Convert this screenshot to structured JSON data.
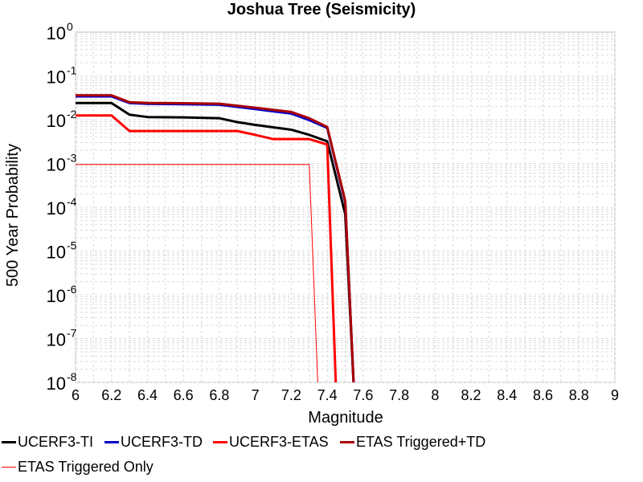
{
  "chart_data": {
    "type": "line",
    "title": "Joshua Tree (Seismicity)",
    "xlabel": "Magnitude",
    "ylabel": "500 Year Probability",
    "xlim": [
      6,
      9
    ],
    "ylim": [
      1e-08,
      1
    ],
    "y_scale": "log",
    "grid": true,
    "legend_position": "bottom",
    "x_ticks": [
      "6",
      "6.2",
      "6.4",
      "6.6",
      "6.8",
      "7",
      "7.2",
      "7.4",
      "7.6",
      "7.8",
      "8",
      "8.2",
      "8.4",
      "8.6",
      "8.8",
      "9"
    ],
    "y_ticks": [
      {
        "base": "10",
        "exp": "0",
        "value": 1
      },
      {
        "base": "10",
        "exp": "-1",
        "value": 0.1
      },
      {
        "base": "10",
        "exp": "-2",
        "value": 0.01
      },
      {
        "base": "10",
        "exp": "-3",
        "value": 0.001
      },
      {
        "base": "10",
        "exp": "-4",
        "value": 0.0001
      },
      {
        "base": "10",
        "exp": "-5",
        "value": 1e-05
      },
      {
        "base": "10",
        "exp": "-6",
        "value": 1e-06
      },
      {
        "base": "10",
        "exp": "-7",
        "value": 1e-07
      },
      {
        "base": "10",
        "exp": "-8",
        "value": 1e-08
      }
    ],
    "series": [
      {
        "name": "UCERF3-TI",
        "color": "#000000",
        "width": 3,
        "points": [
          [
            6.0,
            0.024
          ],
          [
            6.2,
            0.024
          ],
          [
            6.3,
            0.013
          ],
          [
            6.4,
            0.0115
          ],
          [
            6.6,
            0.0113
          ],
          [
            6.8,
            0.0108
          ],
          [
            6.9,
            0.0088
          ],
          [
            7.0,
            0.0076
          ],
          [
            7.1,
            0.0067
          ],
          [
            7.2,
            0.0059
          ],
          [
            7.3,
            0.0045
          ],
          [
            7.4,
            0.0032
          ],
          [
            7.5,
            7e-05
          ],
          [
            7.55,
            5e-09
          ]
        ]
      },
      {
        "name": "UCERF3-TD",
        "color": "#0000cc",
        "width": 3,
        "points": [
          [
            6.0,
            0.034
          ],
          [
            6.2,
            0.034
          ],
          [
            6.3,
            0.024
          ],
          [
            6.4,
            0.023
          ],
          [
            6.6,
            0.0225
          ],
          [
            6.8,
            0.022
          ],
          [
            7.0,
            0.0175
          ],
          [
            7.1,
            0.0155
          ],
          [
            7.2,
            0.0138
          ],
          [
            7.3,
            0.0098
          ],
          [
            7.4,
            0.0065
          ],
          [
            7.5,
            0.00013
          ],
          [
            7.55,
            5e-09
          ]
        ]
      },
      {
        "name": "UCERF3-ETAS",
        "color": "#ff0000",
        "width": 3,
        "points": [
          [
            6.0,
            0.0125
          ],
          [
            6.2,
            0.0125
          ],
          [
            6.3,
            0.0055
          ],
          [
            6.4,
            0.0055
          ],
          [
            6.6,
            0.0055
          ],
          [
            6.8,
            0.0055
          ],
          [
            6.9,
            0.0055
          ],
          [
            7.0,
            0.0045
          ],
          [
            7.1,
            0.0036
          ],
          [
            7.2,
            0.0036
          ],
          [
            7.3,
            0.0036
          ],
          [
            7.4,
            0.0027
          ],
          [
            7.45,
            5e-09
          ]
        ]
      },
      {
        "name": "ETAS Triggered+TD",
        "color": "#aa0000",
        "width": 3,
        "points": [
          [
            6.0,
            0.036
          ],
          [
            6.2,
            0.036
          ],
          [
            6.3,
            0.025
          ],
          [
            6.4,
            0.0242
          ],
          [
            6.6,
            0.0238
          ],
          [
            6.8,
            0.0232
          ],
          [
            7.0,
            0.0188
          ],
          [
            7.1,
            0.0168
          ],
          [
            7.2,
            0.015
          ],
          [
            7.3,
            0.0108
          ],
          [
            7.4,
            0.0068
          ],
          [
            7.5,
            0.00014
          ],
          [
            7.55,
            5e-09
          ]
        ]
      },
      {
        "name": "ETAS Triggered Only",
        "color": "#ff0000",
        "width": 1,
        "points": [
          [
            6.0,
            0.00095
          ],
          [
            7.3,
            0.00095
          ],
          [
            7.35,
            5e-09
          ]
        ]
      }
    ]
  }
}
